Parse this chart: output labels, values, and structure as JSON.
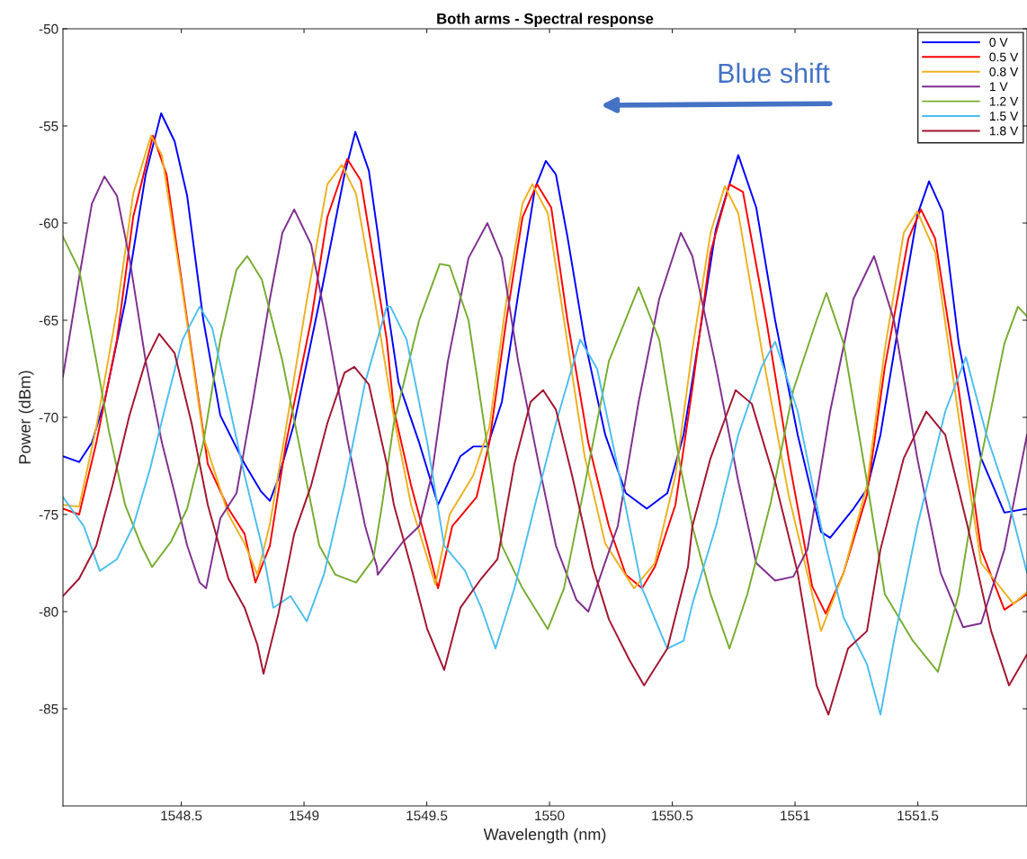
{
  "chart_data": {
    "type": "line",
    "title": "Both arms - Spectral response",
    "xlabel": "Wavelength (nm)",
    "ylabel": "Power (dBm)",
    "xlim": [
      1548.018,
      1551.945
    ],
    "ylim": [
      -90,
      -50
    ],
    "xticks": [
      1548.5,
      1549,
      1549.5,
      1550,
      1550.5,
      1551,
      1551.5
    ],
    "yticks": [
      -85,
      -80,
      -75,
      -70,
      -65,
      -60,
      -55,
      -50
    ],
    "grid": false,
    "legend": "top right",
    "marker": "none",
    "line_style": "solid",
    "annotations": [
      "Blue shift"
    ],
    "series": [
      {
        "name": "0 V",
        "color": "#0000ff",
        "x": [
          1548.018,
          1548.084,
          1548.136,
          1548.187,
          1548.271,
          1548.355,
          1548.418,
          1548.473,
          1548.524,
          1548.59,
          1548.659,
          1548.758,
          1548.824,
          1548.861,
          1548.894,
          1548.96,
          1549.062,
          1549.165,
          1549.209,
          1549.264,
          1549.3,
          1549.337,
          1549.385,
          1549.469,
          1549.546,
          1549.637,
          1549.689,
          1549.747,
          1549.806,
          1549.872,
          1549.941,
          1549.985,
          1550.026,
          1550.073,
          1550.143,
          1550.227,
          1550.311,
          1550.396,
          1550.48,
          1550.546,
          1550.582,
          1550.678,
          1550.769,
          1550.842,
          1550.919,
          1551.011,
          1551.106,
          1551.143,
          1551.238,
          1551.293,
          1551.348,
          1551.425,
          1551.498,
          1551.546,
          1551.601,
          1551.667,
          1551.758,
          1551.853,
          1551.945
        ],
        "values": [
          -72.0,
          -72.3,
          -71.3,
          -69.2,
          -64.1,
          -57.5,
          -54.35,
          -55.8,
          -58.6,
          -65.0,
          -69.9,
          -72.4,
          -73.8,
          -74.3,
          -73.2,
          -70.3,
          -64.1,
          -57.5,
          -55.3,
          -57.3,
          -60.5,
          -64.1,
          -68.2,
          -71.3,
          -74.5,
          -72.0,
          -71.5,
          -71.5,
          -69.2,
          -63.7,
          -58.2,
          -56.8,
          -57.5,
          -60.7,
          -66.0,
          -70.9,
          -73.9,
          -74.7,
          -73.9,
          -70.9,
          -68.1,
          -60.3,
          -56.5,
          -59.2,
          -65.0,
          -70.9,
          -75.9,
          -76.2,
          -74.7,
          -73.7,
          -70.9,
          -65.0,
          -59.6,
          -57.85,
          -59.4,
          -66.2,
          -72.1,
          -74.9,
          -74.7
        ]
      },
      {
        "name": "0.5 V",
        "color": "#ff0000",
        "x": [
          1548.018,
          1548.084,
          1548.154,
          1548.238,
          1548.304,
          1548.385,
          1548.44,
          1548.524,
          1548.608,
          1548.692,
          1548.758,
          1548.802,
          1548.861,
          1548.927,
          1549.029,
          1549.095,
          1549.176,
          1549.231,
          1549.297,
          1549.337,
          1549.366,
          1549.436,
          1549.502,
          1549.546,
          1549.604,
          1549.703,
          1549.755,
          1549.824,
          1549.89,
          1549.949,
          1550.007,
          1550.073,
          1550.158,
          1550.242,
          1550.311,
          1550.377,
          1550.429,
          1550.513,
          1550.582,
          1550.656,
          1550.733,
          1550.788,
          1550.883,
          1550.974,
          1551.07,
          1551.125,
          1551.198,
          1551.293,
          1551.366,
          1551.462,
          1551.513,
          1551.571,
          1551.667,
          1551.758,
          1551.853,
          1551.945
        ],
        "values": [
          -74.7,
          -75.0,
          -71.3,
          -66.0,
          -59.7,
          -55.5,
          -57.5,
          -65.0,
          -72.4,
          -74.7,
          -76.0,
          -78.5,
          -76.6,
          -71.3,
          -65.0,
          -59.7,
          -56.7,
          -57.8,
          -62.9,
          -66.0,
          -69.6,
          -73.5,
          -76.6,
          -78.8,
          -75.6,
          -74.1,
          -71.3,
          -65.0,
          -59.7,
          -58.0,
          -59.2,
          -65.0,
          -71.3,
          -75.6,
          -78.1,
          -78.8,
          -77.7,
          -74.5,
          -68.5,
          -61.5,
          -58.0,
          -58.4,
          -65.0,
          -72.1,
          -78.7,
          -80.1,
          -78.0,
          -74.0,
          -67.4,
          -60.8,
          -59.3,
          -60.8,
          -68.6,
          -76.8,
          -79.9,
          -79.1
        ]
      },
      {
        "name": "0.8 V",
        "color": "#edb120",
        "x": [
          1548.018,
          1548.084,
          1548.154,
          1548.238,
          1548.304,
          1548.377,
          1548.421,
          1548.505,
          1548.59,
          1548.692,
          1548.758,
          1548.81,
          1548.861,
          1548.927,
          1549.011,
          1549.095,
          1549.154,
          1549.212,
          1549.282,
          1549.366,
          1549.436,
          1549.535,
          1549.593,
          1549.689,
          1549.755,
          1549.824,
          1549.89,
          1549.93,
          1549.993,
          1550.059,
          1550.143,
          1550.227,
          1550.344,
          1550.429,
          1550.513,
          1550.582,
          1550.656,
          1550.714,
          1550.769,
          1550.864,
          1550.974,
          1551.106,
          1551.198,
          1551.293,
          1551.366,
          1551.443,
          1551.498,
          1551.571,
          1551.667,
          1551.758,
          1551.89,
          1551.945
        ],
        "values": [
          -74.5,
          -74.6,
          -70.5,
          -64.5,
          -58.5,
          -55.5,
          -56.5,
          -63.5,
          -71.0,
          -75.0,
          -76.5,
          -78.1,
          -75.5,
          -70.5,
          -64.0,
          -58.0,
          -57.0,
          -58.5,
          -63.5,
          -70.0,
          -74.5,
          -78.6,
          -75.0,
          -73.0,
          -70.5,
          -64.0,
          -59.0,
          -58.0,
          -59.5,
          -65.0,
          -72.0,
          -76.5,
          -78.8,
          -77.5,
          -73.0,
          -66.5,
          -60.5,
          -58.1,
          -59.5,
          -66.5,
          -74.0,
          -81.0,
          -78.0,
          -73.5,
          -66.5,
          -60.5,
          -59.4,
          -61.5,
          -70.0,
          -77.5,
          -79.6,
          -79.0
        ]
      },
      {
        "name": "1 V",
        "color": "#7e2f8e",
        "x": [
          1548.018,
          1548.084,
          1548.136,
          1548.187,
          1548.238,
          1548.289,
          1548.355,
          1548.421,
          1548.473,
          1548.524,
          1548.575,
          1548.601,
          1548.659,
          1548.725,
          1548.791,
          1548.861,
          1548.912,
          1548.96,
          1549.029,
          1549.095,
          1549.179,
          1549.249,
          1549.297,
          1549.3,
          1549.403,
          1549.469,
          1549.52,
          1549.586,
          1549.67,
          1549.747,
          1549.806,
          1549.872,
          1549.956,
          1550.026,
          1550.11,
          1550.158,
          1550.22,
          1550.278,
          1550.363,
          1550.447,
          1550.535,
          1550.582,
          1550.678,
          1550.769,
          1550.842,
          1550.919,
          1550.993,
          1551.051,
          1551.143,
          1551.238,
          1551.322,
          1551.403,
          1551.498,
          1551.593,
          1551.685,
          1551.758,
          1551.853,
          1551.945
        ],
        "values": [
          -67.9,
          -62.8,
          -59.0,
          -57.6,
          -58.6,
          -61.8,
          -67.1,
          -71.3,
          -73.9,
          -76.6,
          -78.5,
          -78.8,
          -75.2,
          -73.9,
          -69.2,
          -63.9,
          -60.5,
          -59.3,
          -61.1,
          -65.4,
          -71.3,
          -75.6,
          -77.7,
          -78.1,
          -76.4,
          -75.6,
          -73.0,
          -67.1,
          -61.8,
          -60.0,
          -61.8,
          -67.1,
          -72.4,
          -76.6,
          -79.4,
          -80.0,
          -77.7,
          -75.6,
          -69.2,
          -63.9,
          -60.5,
          -61.7,
          -67.4,
          -73.3,
          -77.5,
          -78.4,
          -78.2,
          -76.8,
          -69.7,
          -63.9,
          -61.7,
          -65.0,
          -72.1,
          -78.0,
          -80.8,
          -80.6,
          -76.8,
          -70.9
        ]
      },
      {
        "name": "1.2 V",
        "color": "#77ac30",
        "x": [
          1548.018,
          1548.084,
          1548.154,
          1548.205,
          1548.271,
          1548.337,
          1548.381,
          1548.458,
          1548.524,
          1548.59,
          1548.659,
          1548.725,
          1548.769,
          1548.828,
          1548.912,
          1548.996,
          1549.062,
          1549.128,
          1549.212,
          1549.282,
          1549.318,
          1549.366,
          1549.469,
          1549.553,
          1549.593,
          1549.67,
          1549.74,
          1549.806,
          1549.89,
          1549.993,
          1550.059,
          1550.143,
          1550.242,
          1550.363,
          1550.447,
          1550.531,
          1550.582,
          1550.656,
          1550.733,
          1550.806,
          1550.901,
          1550.993,
          1551.088,
          1551.128,
          1551.198,
          1551.293,
          1551.366,
          1551.48,
          1551.582,
          1551.667,
          1551.758,
          1551.853,
          1551.908,
          1551.945
        ],
        "values": [
          -60.7,
          -62.4,
          -67.1,
          -70.7,
          -74.5,
          -76.6,
          -77.7,
          -76.4,
          -74.7,
          -71.3,
          -66.0,
          -62.4,
          -61.7,
          -62.9,
          -67.1,
          -72.4,
          -76.6,
          -78.1,
          -78.5,
          -77.3,
          -74.5,
          -70.3,
          -65.0,
          -62.1,
          -62.2,
          -65.0,
          -70.9,
          -76.6,
          -78.8,
          -80.9,
          -78.8,
          -73.5,
          -67.1,
          -63.3,
          -66.0,
          -72.4,
          -75.6,
          -79.1,
          -81.9,
          -79.1,
          -74.4,
          -68.6,
          -65.0,
          -63.6,
          -66.2,
          -73.3,
          -79.1,
          -81.5,
          -83.1,
          -79.1,
          -72.1,
          -66.2,
          -64.3,
          -64.8
        ]
      },
      {
        "name": "1.5 V",
        "color": "#4dbeee",
        "x": [
          1548.018,
          1548.103,
          1548.168,
          1548.238,
          1548.304,
          1548.374,
          1548.44,
          1548.505,
          1548.575,
          1548.626,
          1548.692,
          1548.758,
          1548.828,
          1548.875,
          1548.945,
          1549.011,
          1549.081,
          1549.165,
          1549.249,
          1549.337,
          1549.352,
          1549.418,
          1549.502,
          1549.571,
          1549.656,
          1549.722,
          1549.78,
          1549.857,
          1549.941,
          1550.026,
          1550.125,
          1550.194,
          1550.293,
          1550.377,
          1550.48,
          1550.546,
          1550.582,
          1550.678,
          1550.769,
          1550.864,
          1550.919,
          1551.011,
          1551.106,
          1551.198,
          1551.293,
          1551.348,
          1551.403,
          1551.498,
          1551.612,
          1551.696,
          1551.78,
          1551.872,
          1551.945
        ],
        "values": [
          -74.1,
          -75.6,
          -77.9,
          -77.3,
          -75.6,
          -72.6,
          -69.2,
          -66.0,
          -64.3,
          -65.4,
          -69.2,
          -73.0,
          -76.6,
          -79.8,
          -79.2,
          -80.5,
          -78.1,
          -73.5,
          -68.2,
          -64.3,
          -64.3,
          -66.0,
          -71.3,
          -76.6,
          -77.9,
          -79.8,
          -81.9,
          -78.8,
          -74.5,
          -70.3,
          -66.0,
          -67.5,
          -73.5,
          -78.8,
          -81.9,
          -81.5,
          -79.6,
          -75.6,
          -70.9,
          -67.4,
          -66.1,
          -69.7,
          -75.6,
          -80.3,
          -82.7,
          -85.3,
          -81.5,
          -75.6,
          -69.7,
          -66.9,
          -70.9,
          -74.4,
          -78.0
        ]
      },
      {
        "name": "1.8 V",
        "color": "#a2142f",
        "x": [
          1548.018,
          1548.084,
          1548.154,
          1548.22,
          1548.289,
          1548.355,
          1548.41,
          1548.473,
          1548.542,
          1548.608,
          1548.692,
          1548.758,
          1548.81,
          1548.835,
          1548.894,
          1548.96,
          1549.029,
          1549.095,
          1549.165,
          1549.205,
          1549.264,
          1549.337,
          1549.366,
          1549.436,
          1549.502,
          1549.571,
          1549.637,
          1549.722,
          1549.788,
          1549.857,
          1549.923,
          1549.974,
          1550.026,
          1550.092,
          1550.176,
          1550.242,
          1550.326,
          1550.385,
          1550.48,
          1550.564,
          1550.582,
          1550.656,
          1550.758,
          1550.824,
          1550.919,
          1551.011,
          1551.088,
          1551.136,
          1551.216,
          1551.293,
          1551.348,
          1551.443,
          1551.535,
          1551.612,
          1551.703,
          1551.799,
          1551.872,
          1551.945
        ],
        "values": [
          -79.2,
          -78.3,
          -76.6,
          -73.5,
          -69.9,
          -67.1,
          -65.7,
          -66.7,
          -70.3,
          -74.5,
          -78.3,
          -79.8,
          -81.7,
          -83.2,
          -80.2,
          -76.0,
          -73.5,
          -70.3,
          -67.7,
          -67.4,
          -68.3,
          -72.4,
          -74.5,
          -77.7,
          -80.9,
          -83.0,
          -79.8,
          -78.3,
          -77.3,
          -72.4,
          -69.2,
          -68.6,
          -69.6,
          -73.0,
          -77.7,
          -80.4,
          -82.5,
          -83.8,
          -81.9,
          -77.7,
          -75.6,
          -72.1,
          -68.6,
          -69.3,
          -73.3,
          -78.0,
          -83.8,
          -85.3,
          -81.9,
          -81.0,
          -76.8,
          -72.1,
          -69.7,
          -70.9,
          -75.6,
          -81.0,
          -83.8,
          -82.2
        ]
      }
    ]
  }
}
